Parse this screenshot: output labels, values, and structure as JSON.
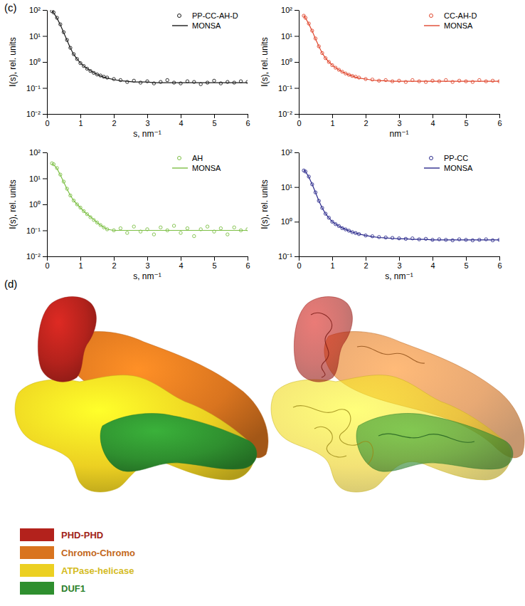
{
  "panel_labels": [
    "(c)",
    "(d)"
  ],
  "chart_data": [
    {
      "type": "line",
      "log": "y",
      "legend": "upper right",
      "x_label": "s, nm⁻¹",
      "y_label": "I(s), rel. units",
      "xlim": [
        0,
        6
      ],
      "xticks": [
        0,
        1,
        2,
        3,
        4,
        5,
        6
      ],
      "ylim": [
        0.01,
        100
      ],
      "yticks": [
        {
          "value": 0.01,
          "label": "10⁻²"
        },
        {
          "value": 0.1,
          "label": "10⁻¹"
        },
        {
          "value": 1,
          "label": "10⁰"
        },
        {
          "value": 10,
          "label": "10¹"
        },
        {
          "value": 100,
          "label": "10²"
        }
      ],
      "x": [
        0.15,
        0.2,
        0.3,
        0.4,
        0.5,
        0.6,
        0.7,
        0.8,
        0.9,
        1.0,
        1.1,
        1.2,
        1.3,
        1.4,
        1.5,
        1.6,
        1.7,
        1.8,
        2.0,
        2.2,
        2.4,
        2.6,
        2.8,
        3.0,
        3.2,
        3.4,
        3.6,
        3.8,
        4.0,
        4.2,
        4.4,
        4.6,
        4.8,
        5.0,
        5.2,
        5.4,
        5.6,
        5.8,
        6.0
      ],
      "series": [
        {
          "name": "PP-CC-AH-D",
          "type": "scatter",
          "marker": "circle-open",
          "color": "#1a1a1a",
          "values": [
            90,
            80,
            50,
            28,
            14,
            7,
            3.5,
            2.0,
            1.3,
            0.9,
            0.7,
            0.55,
            0.45,
            0.38,
            0.33,
            0.3,
            0.27,
            0.25,
            0.22,
            0.2,
            0.17,
            0.19,
            0.16,
            0.18,
            0.15,
            0.17,
            0.2,
            0.16,
            0.15,
            0.18,
            0.17,
            0.14,
            0.16,
            0.19,
            0.15,
            0.17,
            0.16,
            0.18,
            0.17
          ]
        },
        {
          "name": "MONSA",
          "type": "line",
          "line_style": "solid",
          "color": "#1a1a1a",
          "values": [
            92,
            78,
            48,
            27,
            13.5,
            6.8,
            3.4,
            1.95,
            1.3,
            0.92,
            0.7,
            0.56,
            0.46,
            0.39,
            0.33,
            0.29,
            0.26,
            0.24,
            0.21,
            0.19,
            0.18,
            0.17,
            0.17,
            0.17,
            0.16,
            0.16,
            0.16,
            0.16,
            0.16,
            0.16,
            0.16,
            0.16,
            0.16,
            0.16,
            0.16,
            0.16,
            0.16,
            0.16,
            0.16
          ]
        }
      ]
    },
    {
      "type": "line",
      "log": "y",
      "legend": "upper right",
      "x_label": "nm⁻¹",
      "y_label": "I(s), rel. units",
      "xlim": [
        0,
        6
      ],
      "xticks": [
        0,
        1,
        2,
        3,
        4,
        5,
        6
      ],
      "ylim": [
        0.01,
        100
      ],
      "yticks": [
        {
          "value": 0.01,
          "label": "10⁻²"
        },
        {
          "value": 0.1,
          "label": "10⁻¹"
        },
        {
          "value": 1,
          "label": "10⁰"
        },
        {
          "value": 10,
          "label": "10¹"
        },
        {
          "value": 100,
          "label": "10²"
        }
      ],
      "x": [
        0.15,
        0.2,
        0.3,
        0.4,
        0.5,
        0.6,
        0.7,
        0.8,
        0.9,
        1.0,
        1.1,
        1.2,
        1.3,
        1.4,
        1.5,
        1.6,
        1.7,
        1.8,
        2.0,
        2.2,
        2.4,
        2.6,
        2.8,
        3.0,
        3.2,
        3.4,
        3.6,
        3.8,
        4.0,
        4.2,
        4.4,
        4.6,
        4.8,
        5.0,
        5.2,
        5.4,
        5.6,
        5.8,
        6.0
      ],
      "series": [
        {
          "name": "CC-AH-D",
          "type": "scatter",
          "marker": "circle-open",
          "color": "#e0472e",
          "values": [
            60,
            50,
            30,
            16,
            8,
            4,
            2.2,
            1.4,
            1.0,
            0.75,
            0.6,
            0.5,
            0.42,
            0.36,
            0.32,
            0.29,
            0.27,
            0.25,
            0.22,
            0.21,
            0.19,
            0.2,
            0.18,
            0.19,
            0.17,
            0.2,
            0.18,
            0.17,
            0.19,
            0.18,
            0.2,
            0.17,
            0.19,
            0.18,
            0.17,
            0.2,
            0.18,
            0.19,
            0.18
          ]
        },
        {
          "name": "MONSA",
          "type": "line",
          "line_style": "solid",
          "color": "#e0472e",
          "values": [
            62,
            49,
            29,
            15.5,
            7.8,
            4.0,
            2.2,
            1.4,
            1.0,
            0.76,
            0.6,
            0.5,
            0.42,
            0.36,
            0.32,
            0.29,
            0.26,
            0.24,
            0.22,
            0.2,
            0.19,
            0.19,
            0.18,
            0.18,
            0.18,
            0.18,
            0.18,
            0.18,
            0.18,
            0.18,
            0.18,
            0.18,
            0.18,
            0.18,
            0.18,
            0.18,
            0.18,
            0.18,
            0.18
          ]
        }
      ]
    },
    {
      "type": "line",
      "log": "y",
      "legend": "upper right",
      "x_label": "s, nm⁻¹",
      "y_label": "I(s), rel. units",
      "xlim": [
        0,
        6
      ],
      "xticks": [
        0,
        1,
        2,
        3,
        4,
        5,
        6
      ],
      "ylim": [
        0.01,
        100
      ],
      "yticks": [
        {
          "value": 0.01,
          "label": "10⁻²"
        },
        {
          "value": 0.1,
          "label": "10⁻¹"
        },
        {
          "value": 1,
          "label": "10⁰"
        },
        {
          "value": 10,
          "label": "10¹"
        },
        {
          "value": 100,
          "label": "10²"
        }
      ],
      "x": [
        0.15,
        0.2,
        0.3,
        0.4,
        0.5,
        0.6,
        0.7,
        0.8,
        0.9,
        1.0,
        1.1,
        1.2,
        1.3,
        1.4,
        1.5,
        1.6,
        1.7,
        1.8,
        2.0,
        2.2,
        2.4,
        2.6,
        2.8,
        3.0,
        3.2,
        3.4,
        3.6,
        3.8,
        4.0,
        4.2,
        4.4,
        4.6,
        4.8,
        5.0,
        5.2,
        5.4,
        5.6,
        5.8,
        6.0
      ],
      "series": [
        {
          "name": "AH",
          "type": "scatter",
          "marker": "circle-open",
          "color": "#7dbf45",
          "values": [
            38,
            35,
            25,
            14,
            7.5,
            4,
            2.2,
            1.4,
            1.0,
            0.75,
            0.55,
            0.42,
            0.32,
            0.25,
            0.2,
            0.16,
            0.13,
            0.11,
            0.1,
            0.12,
            0.08,
            0.14,
            0.09,
            0.11,
            0.07,
            0.13,
            0.1,
            0.15,
            0.08,
            0.12,
            0.06,
            0.11,
            0.14,
            0.09,
            0.12,
            0.07,
            0.13,
            0.1,
            0.11
          ]
        },
        {
          "name": "MONSA",
          "type": "line",
          "line_style": "solid",
          "color": "#7dbf45",
          "values": [
            37,
            34,
            24,
            13.5,
            7.3,
            3.9,
            2.2,
            1.4,
            1.0,
            0.74,
            0.55,
            0.42,
            0.33,
            0.26,
            0.2,
            0.16,
            0.13,
            0.11,
            0.1,
            0.1,
            0.1,
            0.1,
            0.1,
            0.1,
            0.1,
            0.1,
            0.1,
            0.1,
            0.1,
            0.1,
            0.1,
            0.1,
            0.1,
            0.1,
            0.1,
            0.1,
            0.1,
            0.1,
            0.1
          ]
        }
      ]
    },
    {
      "type": "line",
      "log": "y",
      "legend": "upper right",
      "x_label": "s, nm⁻¹",
      "y_label": "I(s), rel. units",
      "xlim": [
        0,
        6
      ],
      "xticks": [
        0,
        1,
        2,
        3,
        4,
        5,
        6
      ],
      "ylim": [
        0.1,
        100
      ],
      "yticks": [
        {
          "value": 0.1,
          "label": "10⁻¹"
        },
        {
          "value": 1,
          "label": "10⁰"
        },
        {
          "value": 10,
          "label": "10¹"
        },
        {
          "value": 100,
          "label": "10²"
        }
      ],
      "x": [
        0.15,
        0.2,
        0.3,
        0.4,
        0.5,
        0.6,
        0.7,
        0.8,
        0.9,
        1.0,
        1.1,
        1.2,
        1.3,
        1.4,
        1.5,
        1.6,
        1.7,
        1.8,
        2.0,
        2.2,
        2.4,
        2.6,
        2.8,
        3.0,
        3.2,
        3.4,
        3.6,
        3.8,
        4.0,
        4.2,
        4.4,
        4.6,
        4.8,
        5.0,
        5.2,
        5.4,
        5.6,
        5.8,
        6.0
      ],
      "series": [
        {
          "name": "PP-CC",
          "type": "scatter",
          "marker": "circle-open",
          "color": "#2b2a8c",
          "values": [
            30,
            28,
            20,
            12,
            7,
            4,
            2.5,
            1.7,
            1.3,
            1.0,
            0.85,
            0.75,
            0.65,
            0.6,
            0.55,
            0.5,
            0.47,
            0.44,
            0.4,
            0.38,
            0.36,
            0.35,
            0.34,
            0.33,
            0.32,
            0.33,
            0.31,
            0.32,
            0.3,
            0.31,
            0.3,
            0.29,
            0.31,
            0.3,
            0.29,
            0.3,
            0.31,
            0.29,
            0.3
          ]
        },
        {
          "name": "MONSA",
          "type": "line",
          "line_style": "solid",
          "color": "#2b2a8c",
          "values": [
            31,
            28,
            19.5,
            12,
            7,
            4,
            2.5,
            1.7,
            1.3,
            1.0,
            0.86,
            0.75,
            0.66,
            0.6,
            0.55,
            0.5,
            0.47,
            0.44,
            0.4,
            0.37,
            0.35,
            0.34,
            0.33,
            0.32,
            0.32,
            0.31,
            0.31,
            0.31,
            0.3,
            0.3,
            0.3,
            0.3,
            0.3,
            0.3,
            0.3,
            0.3,
            0.3,
            0.3,
            0.3
          ]
        }
      ]
    }
  ],
  "model_legend": [
    {
      "label": "PHD-PHD",
      "color": "#b3221c"
    },
    {
      "label": "Chromo-Chromo",
      "color": "#d9741f"
    },
    {
      "label": "ATPase-helicase",
      "color": "#ecd022"
    },
    {
      "label": "DUF1",
      "color": "#2f8f2f"
    }
  ]
}
